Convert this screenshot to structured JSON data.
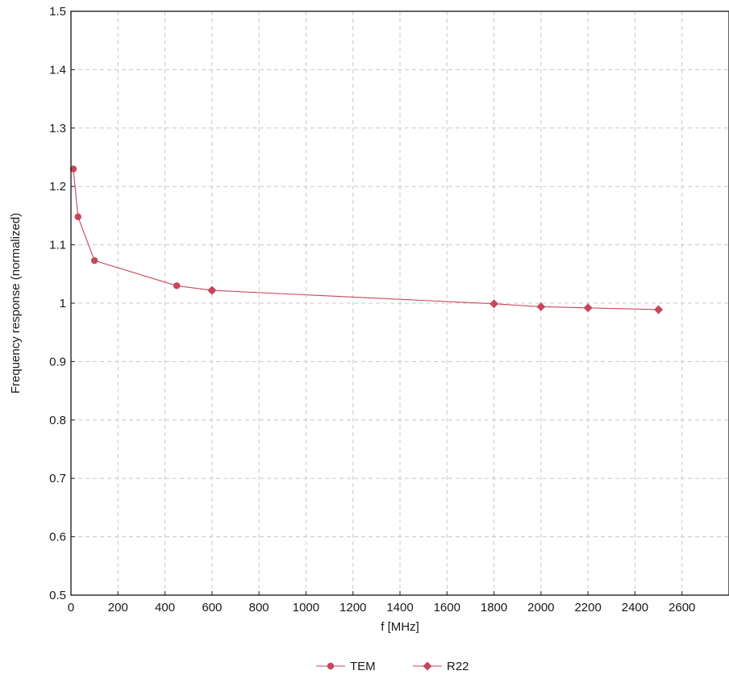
{
  "chart_data": {
    "type": "line",
    "xlabel": "f [MHz]",
    "ylabel": "Frequency response (normalized)",
    "xlim": [
      0,
      2800
    ],
    "ylim": [
      0.5,
      1.5
    ],
    "xticks": [
      0,
      200,
      400,
      600,
      800,
      1000,
      1200,
      1400,
      1600,
      1800,
      2000,
      2200,
      2400,
      2600
    ],
    "yticks": [
      0.5,
      0.6,
      0.7,
      0.8,
      0.9,
      1,
      1.1,
      1.2,
      1.3,
      1.4,
      1.5
    ],
    "grid": true,
    "legend_position": "bottom-center",
    "color": "#c8465a",
    "series": [
      {
        "name": "TEM",
        "marker": "circle",
        "x": [
          10,
          30,
          100,
          450,
          600
        ],
        "y": [
          1.23,
          1.148,
          1.073,
          1.03,
          1.022
        ]
      },
      {
        "name": "R22",
        "marker": "diamond",
        "x": [
          600,
          1800,
          2000,
          2200,
          2500
        ],
        "y": [
          1.022,
          0.999,
          0.994,
          0.992,
          0.989
        ]
      }
    ]
  }
}
